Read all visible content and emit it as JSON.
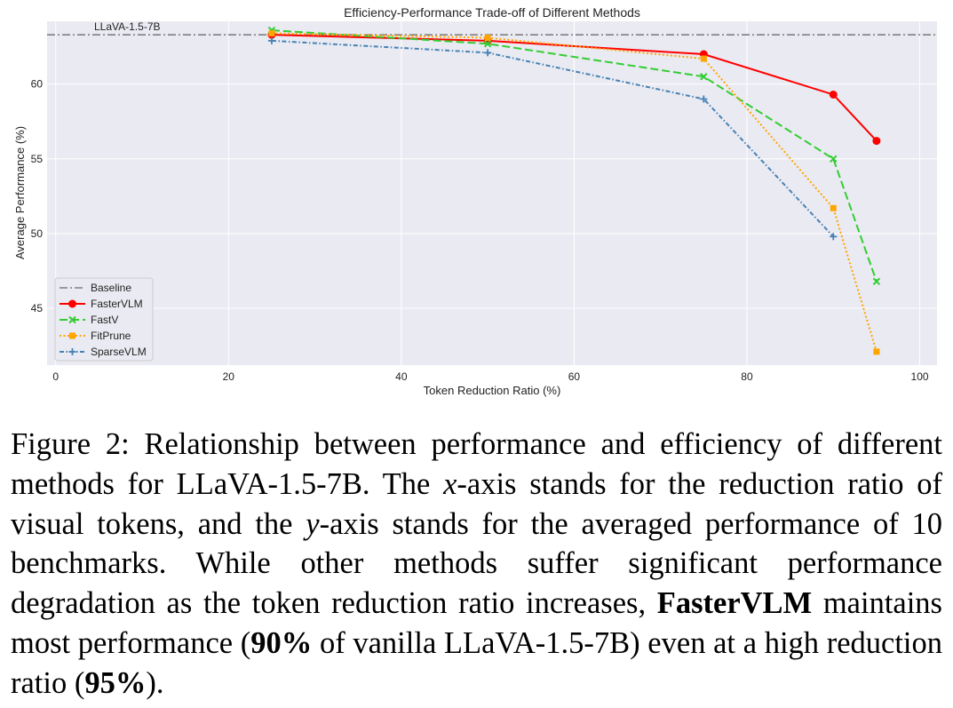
{
  "chart_data": {
    "type": "line",
    "title": "Efficiency-Performance Trade-off of Different Methods",
    "xlabel": "Token Reduction Ratio (%)",
    "ylabel": "Average Performance (%)",
    "xlim": [
      -1,
      102
    ],
    "ylim": [
      41.2,
      64.2
    ],
    "xticks": [
      0,
      20,
      40,
      60,
      80,
      100
    ],
    "yticks": [
      45,
      50,
      55,
      60
    ],
    "grid": true,
    "legend_position": "lower-left",
    "baseline": {
      "name": "Baseline",
      "value": 63.3,
      "label": "LLaVA-1.5-7B",
      "color": "#808080"
    },
    "series": [
      {
        "name": "FasterVLM",
        "color": "#ff0000",
        "marker": "circle",
        "dash": "solid",
        "x": [
          25,
          50,
          75,
          90,
          95
        ],
        "y": [
          63.3,
          62.9,
          62.0,
          59.3,
          56.2
        ]
      },
      {
        "name": "FastV",
        "color": "#32cd32",
        "marker": "x",
        "dash": "dashed",
        "x": [
          25,
          50,
          75,
          90,
          95
        ],
        "y": [
          63.6,
          62.7,
          60.5,
          55.0,
          46.8
        ]
      },
      {
        "name": "FitPrune",
        "color": "#ffa500",
        "marker": "square",
        "dash": "dotted",
        "x": [
          25,
          50,
          75,
          90,
          95
        ],
        "y": [
          63.4,
          63.1,
          61.7,
          51.7,
          42.1
        ]
      },
      {
        "name": "SparseVLM",
        "color": "#4682b4",
        "marker": "plus",
        "dash": "dashdot",
        "x": [
          25,
          50,
          75,
          90
        ],
        "y": [
          62.9,
          62.1,
          59.0,
          49.8
        ]
      }
    ]
  },
  "caption": {
    "s1": "Figure 2: Relationship between performance and efficiency of different methods for LLaVA-1.5-7B. The ",
    "xvar": "x",
    "s2": "-axis stands for the reduction ratio of visual tokens, and the ",
    "yvar": "y",
    "s3": "-axis stands for the averaged performance of 10 benchmarks. While other methods suffer significant performance degradation as the token reduction ratio increases, ",
    "b1": "FasterVLM",
    "s4": " maintains most performance (",
    "b2": "90%",
    "s5": " of vanilla LLaVA-1.5-7B) even at a high reduction ratio (",
    "b3": "95%",
    "s6": ")."
  }
}
